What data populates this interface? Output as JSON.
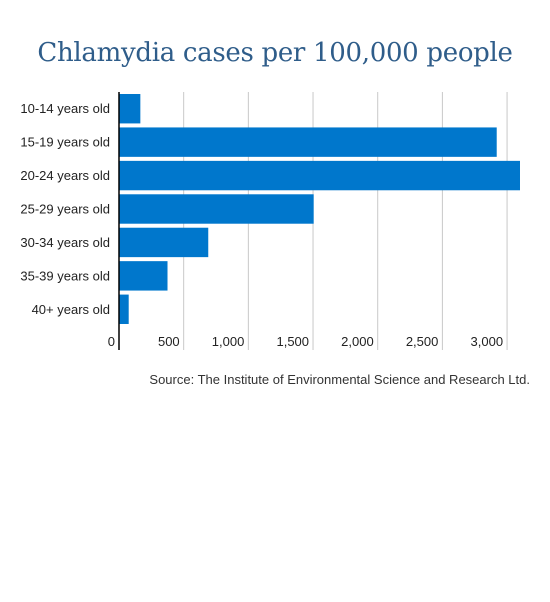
{
  "title": "Chlamydia cases per 100,000 people",
  "source": "Source: The Institute of Environmental Science and Research Ltd.",
  "colors": {
    "bar": "#0077cc",
    "title": "#2f5d8a",
    "grid": "#c8c8c8",
    "axis": "#000000"
  },
  "chart_data": {
    "type": "bar",
    "orientation": "horizontal",
    "title": "Chlamydia cases per 100,000 people",
    "xlabel": "",
    "ylabel": "",
    "categories": [
      "10-14 years old",
      "15-19 years old",
      "20-24 years old",
      "25-29 years old",
      "30-34 years old",
      "35-39 years old",
      "40+ years old"
    ],
    "values": [
      165,
      2920,
      3100,
      1505,
      690,
      375,
      75
    ],
    "xlim": [
      0,
      3100
    ],
    "xticks": [
      0,
      500,
      1000,
      1500,
      2000,
      2500,
      3000
    ],
    "xtick_labels": [
      "0",
      "500",
      "1,000",
      "1,500",
      "2,000",
      "2,500",
      "3,000"
    ],
    "grid": "vertical",
    "legend": "none"
  }
}
